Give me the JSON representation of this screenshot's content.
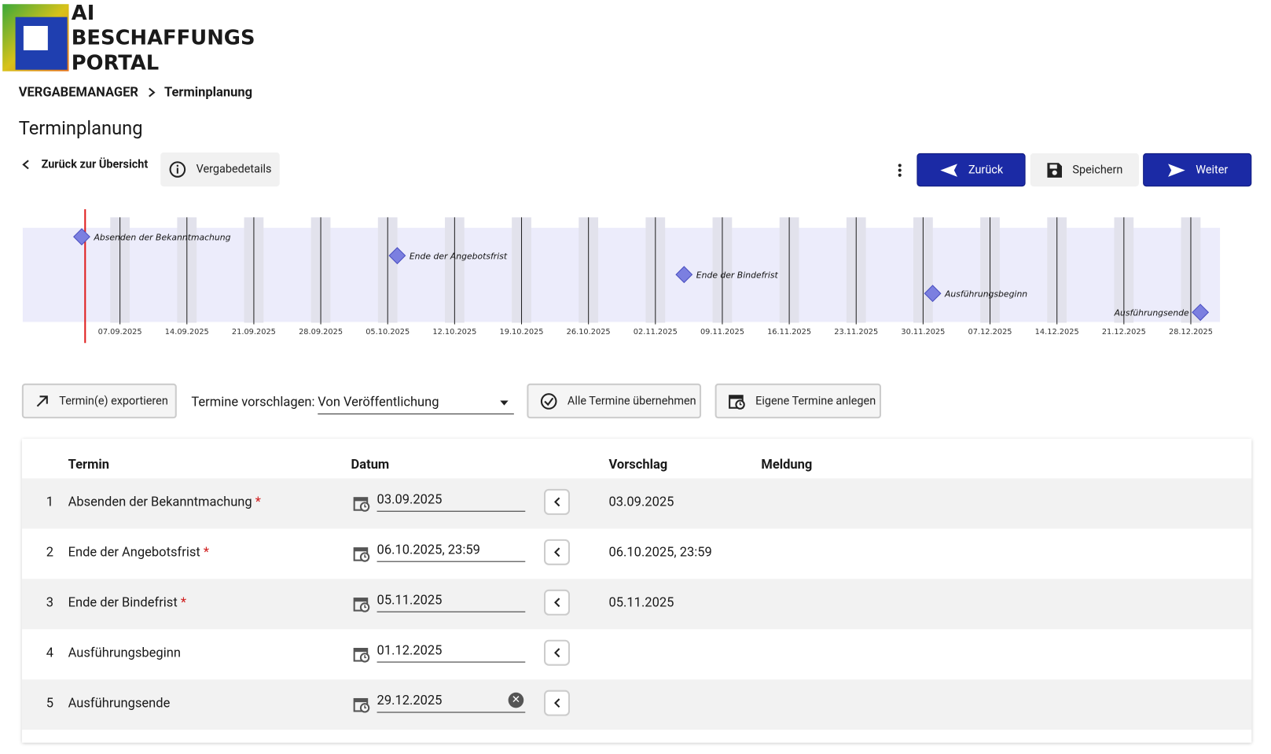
{
  "header": {
    "logo_lines": [
      "AI",
      "BESCHAFFUNGS",
      "PORTAL"
    ]
  },
  "breadcrumb": [
    "VERGABEMANAGER",
    "Terminplanung"
  ],
  "page_title": "Terminplanung",
  "toolbar": {
    "back_link": "Zurück zur Übersicht",
    "details": "Vergabedetails",
    "previous": "Zurück",
    "save": "Speichern",
    "next": "Weiter"
  },
  "timeline": {
    "ticks": [
      "07.09.2025",
      "14.09.2025",
      "21.09.2025",
      "28.09.2025",
      "05.10.2025",
      "12.10.2025",
      "19.10.2025",
      "26.10.2025",
      "02.11.2025",
      "09.11.2025",
      "16.11.2025",
      "23.11.2025",
      "30.11.2025",
      "07.12.2025",
      "14.12.2025",
      "21.12.2025",
      "28.12.2025"
    ]
  },
  "controls": {
    "export": "Termin(e) exportieren",
    "suggest_label": "Termine vorschlagen:",
    "suggest_value": "Von Veröffentlichung",
    "accept_all": "Alle Termine übernehmen",
    "own_dates": "Eigene Termine anlegen"
  },
  "table": {
    "columns": [
      "Termin",
      "Datum",
      "Vorschlag",
      "Meldung"
    ],
    "rows": [
      {
        "number": 1,
        "termin": "Absenden der Bekanntmachung",
        "mark": "*",
        "datum": "03.09.2025",
        "vorschlag": "03.09.2025"
      },
      {
        "number": 2,
        "termin": "Ende der Angebotsfrist",
        "mark": "*",
        "datum": "06.10.2025, 23:59",
        "vorschlag": "06.10.2025, 23:59"
      },
      {
        "number": 3,
        "termin": "Ende der Bindefrist",
        "mark": "*",
        "datum": "05.11.2025",
        "vorschlag": "05.11.2025"
      },
      {
        "number": 4,
        "termin": "Ausführungsbeginn",
        "datum": "01.12.2025"
      },
      {
        "number": 5,
        "termin": "Ausführungsende",
        "datum": "29.12.2025"
      }
    ]
  }
}
